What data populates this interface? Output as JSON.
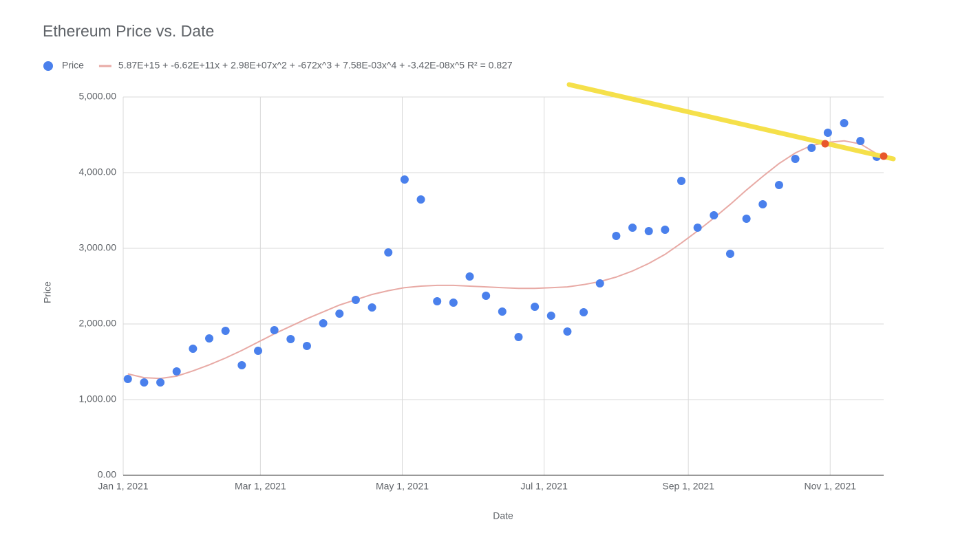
{
  "chart_data": {
    "type": "scatter",
    "title": "Ethereum Price vs. Date",
    "x_label": "Date",
    "y_label": "Price",
    "x": [
      "2021-01-03",
      "2021-01-10",
      "2021-01-17",
      "2021-01-24",
      "2021-01-31",
      "2021-02-07",
      "2021-02-14",
      "2021-02-21",
      "2021-02-28",
      "2021-03-07",
      "2021-03-14",
      "2021-03-21",
      "2021-03-28",
      "2021-04-04",
      "2021-04-11",
      "2021-04-18",
      "2021-04-25",
      "2021-05-02",
      "2021-05-09",
      "2021-05-16",
      "2021-05-23",
      "2021-05-30",
      "2021-06-06",
      "2021-06-13",
      "2021-06-20",
      "2021-06-27",
      "2021-07-04",
      "2021-07-11",
      "2021-07-18",
      "2021-07-25",
      "2021-08-01",
      "2021-08-08",
      "2021-08-15",
      "2021-08-22",
      "2021-08-29",
      "2021-09-05",
      "2021-09-12",
      "2021-09-19",
      "2021-09-26",
      "2021-10-03",
      "2021-10-10",
      "2021-10-17",
      "2021-10-24",
      "2021-10-31",
      "2021-11-07",
      "2021-11-14",
      "2021-11-21"
    ],
    "series": [
      {
        "name": "Price",
        "type": "scatter",
        "color": "#4a80ec",
        "values": [
          1273,
          1227,
          1227,
          1373,
          1673,
          1809,
          1909,
          1455,
          1645,
          1918,
          1800,
          1709,
          2009,
          2136,
          2318,
          2218,
          2945,
          3909,
          3645,
          2300,
          2282,
          2627,
          2373,
          2164,
          1827,
          2227,
          2109,
          1900,
          2155,
          2536,
          3164,
          3273,
          3227,
          3245,
          3891,
          3273,
          3436,
          2927,
          3391,
          3582,
          3836,
          4182,
          4327,
          4527,
          4655,
          4418,
          4209
        ]
      },
      {
        "name": "5.87E+15 + -6.62E+11x + 2.98E+07x^2 + -672x^3 + 7.58E-03x^4 + -3.42E-08x^5 R² = 0.827",
        "type": "line",
        "color": "#e8aaa5",
        "values": [
          1340,
          1290,
          1280,
          1310,
          1380,
          1460,
          1550,
          1650,
          1760,
          1870,
          1970,
          2070,
          2160,
          2250,
          2320,
          2390,
          2440,
          2480,
          2500,
          2510,
          2510,
          2500,
          2490,
          2480,
          2470,
          2470,
          2480,
          2490,
          2520,
          2560,
          2620,
          2700,
          2800,
          2920,
          3070,
          3230,
          3400,
          3580,
          3770,
          3950,
          4120,
          4260,
          4360,
          4400,
          4420,
          4380,
          4250
        ]
      }
    ],
    "xlim": [
      "2021-01-01",
      "2021-11-24"
    ],
    "xticks": [
      {
        "value": "2021-01-01",
        "label": "Jan 1, 2021"
      },
      {
        "value": "2021-03-01",
        "label": "Mar 1, 2021"
      },
      {
        "value": "2021-05-01",
        "label": "May 1, 2021"
      },
      {
        "value": "2021-07-01",
        "label": "Jul 1, 2021"
      },
      {
        "value": "2021-09-01",
        "label": "Sep 1, 2021"
      },
      {
        "value": "2021-11-01",
        "label": "Nov 1, 2021"
      }
    ],
    "ylim": [
      0,
      5000
    ],
    "yticks": [
      {
        "value": 0,
        "label": "0.00"
      },
      {
        "value": 1000,
        "label": "1,000.00"
      },
      {
        "value": 2000,
        "label": "2,000.00"
      },
      {
        "value": 3000,
        "label": "3,000.00"
      },
      {
        "value": 4000,
        "label": "4,000.00"
      },
      {
        "value": 5000,
        "label": "5,000.00"
      }
    ],
    "grid": true
  }
}
